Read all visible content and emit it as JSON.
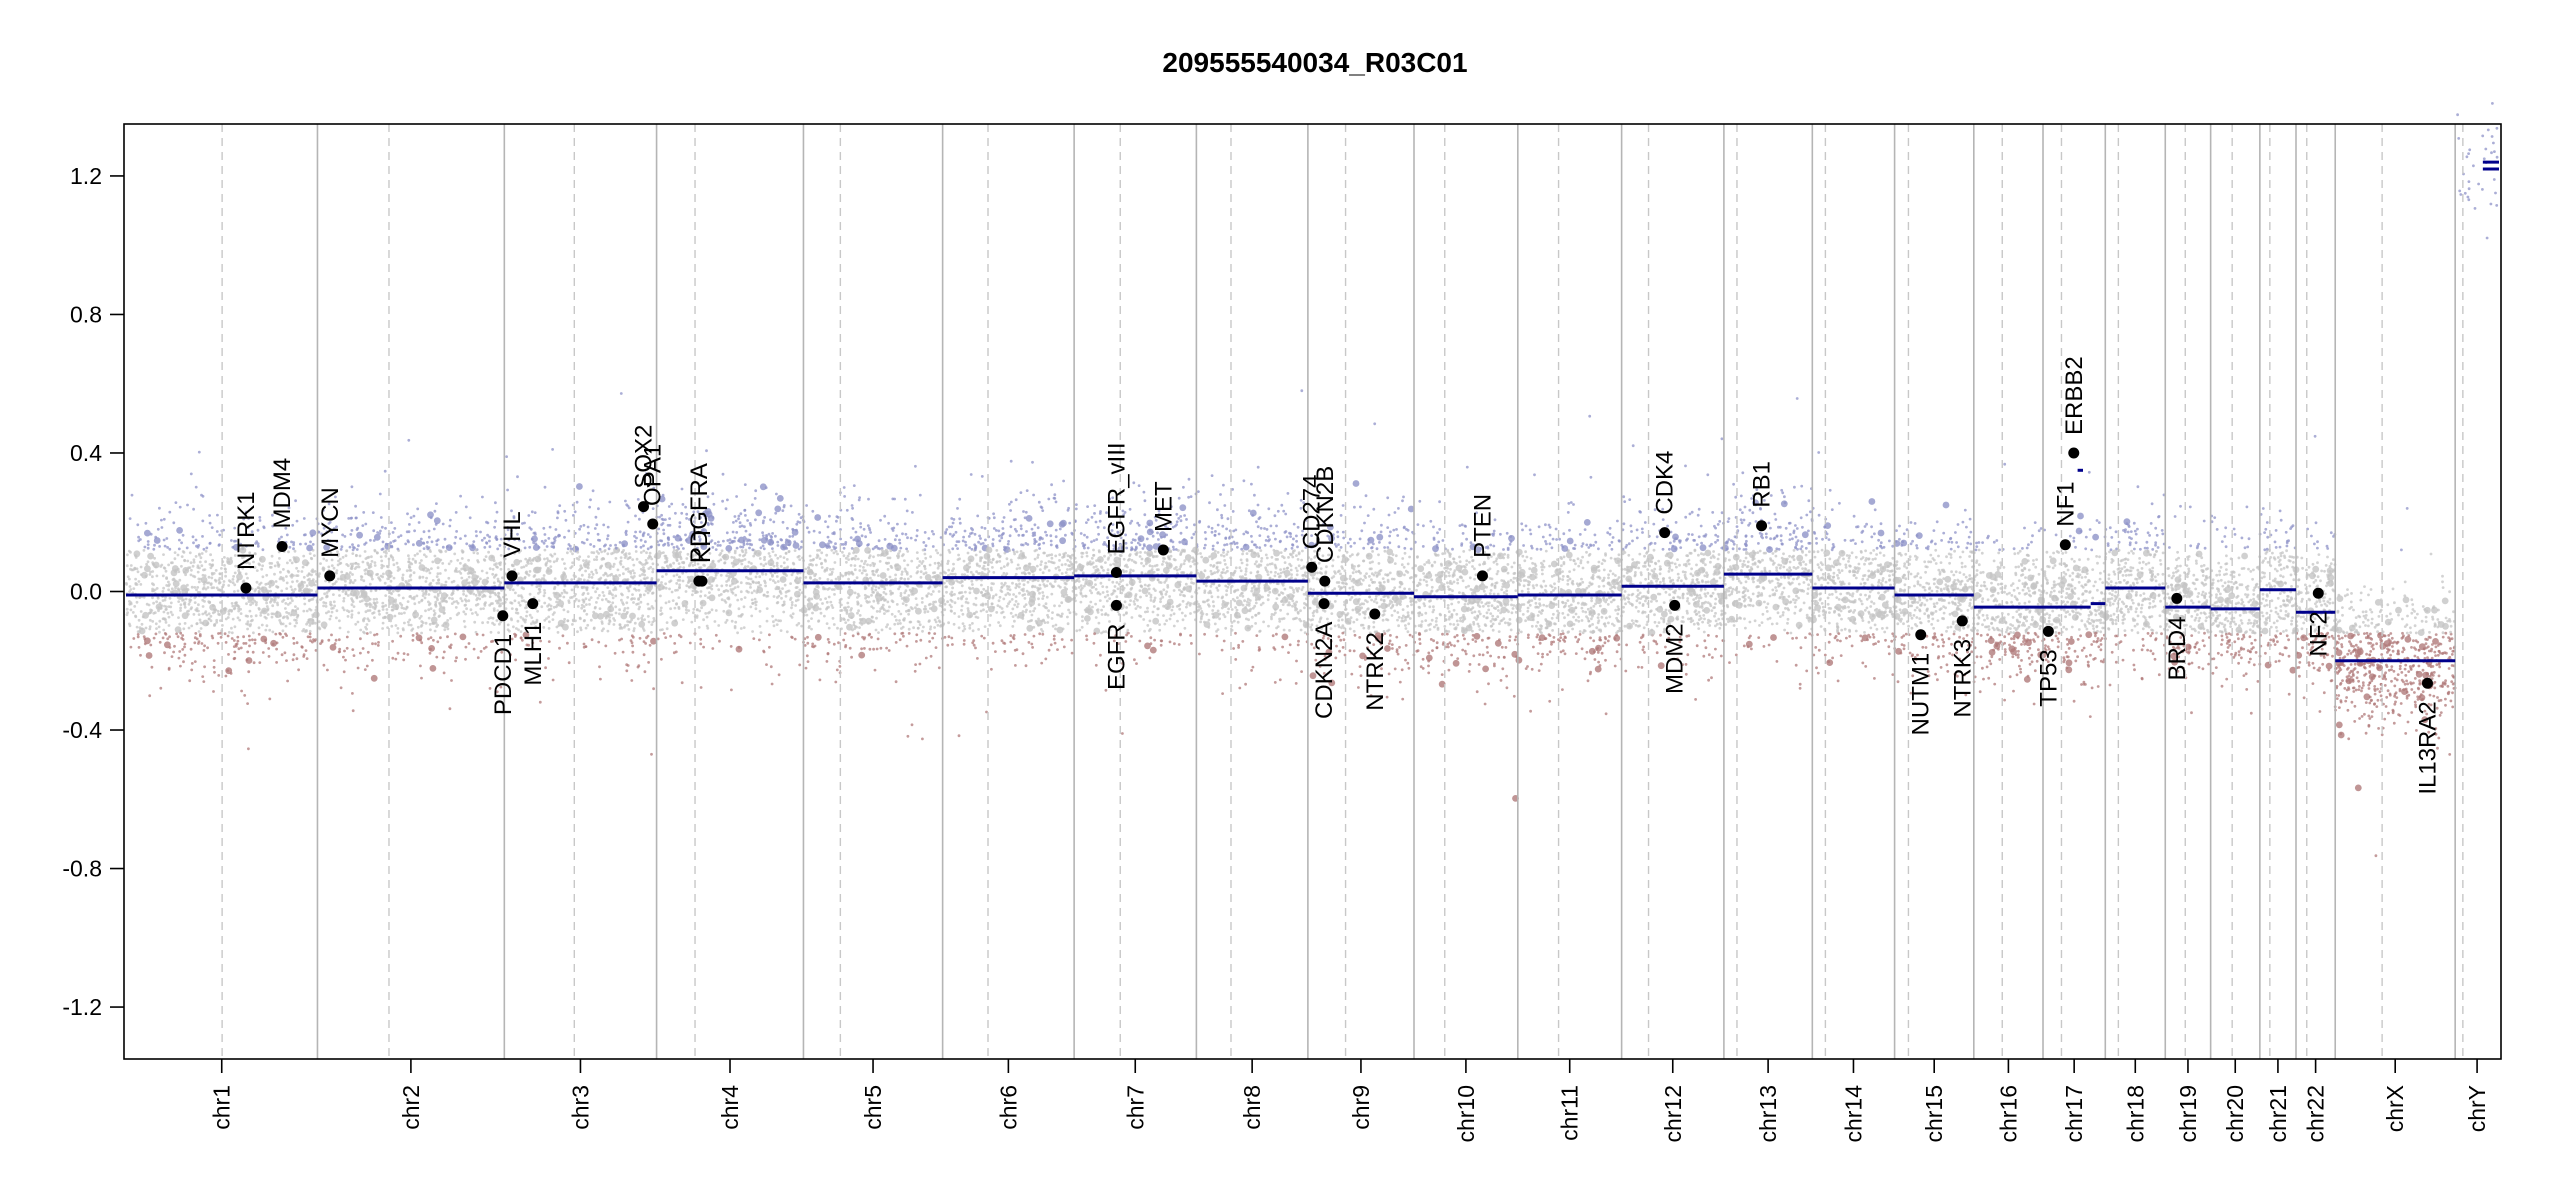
{
  "chart_data": {
    "type": "scatter",
    "title": "209555540034_R03C01",
    "xlabel": "",
    "ylabel": "",
    "ylim": [
      -1.35,
      1.35
    ],
    "yticks": [
      "-1.2",
      "-0.8",
      "-0.4",
      "0.0",
      "0.4",
      "0.8",
      "1.2"
    ],
    "grid": false,
    "colors": {
      "gain": "#8f93c8",
      "loss": "#b07a7a",
      "neutral": "#c4c4c4",
      "segment": "#00008b",
      "gene": "#000000"
    },
    "chromosomes": [
      {
        "name": "chr1",
        "start": 0,
        "end": 249,
        "centromere": 125,
        "segments": [
          {
            "s": 0,
            "e": 249,
            "v": -0.01
          }
        ]
      },
      {
        "name": "chr2",
        "start": 249,
        "end": 492,
        "centromere": 342,
        "segments": [
          {
            "s": 249,
            "e": 492,
            "v": 0.01
          }
        ]
      },
      {
        "name": "chr3",
        "start": 492,
        "end": 690,
        "centromere": 583,
        "segments": [
          {
            "s": 492,
            "e": 690,
            "v": 0.025
          }
        ]
      },
      {
        "name": "chr4",
        "start": 690,
        "end": 881,
        "centromere": 740,
        "segments": [
          {
            "s": 690,
            "e": 881,
            "v": 0.06
          }
        ]
      },
      {
        "name": "chr5",
        "start": 881,
        "end": 1062,
        "centromere": 929,
        "segments": [
          {
            "s": 881,
            "e": 1062,
            "v": 0.025
          }
        ]
      },
      {
        "name": "chr6",
        "start": 1062,
        "end": 1233,
        "centromere": 1121,
        "segments": [
          {
            "s": 1062,
            "e": 1233,
            "v": 0.04
          }
        ]
      },
      {
        "name": "chr7",
        "start": 1233,
        "end": 1392,
        "centromere": 1293,
        "segments": [
          {
            "s": 1233,
            "e": 1392,
            "v": 0.045
          }
        ]
      },
      {
        "name": "chr8",
        "start": 1392,
        "end": 1537,
        "centromere": 1437,
        "segments": [
          {
            "s": 1392,
            "e": 1537,
            "v": 0.03
          }
        ]
      },
      {
        "name": "chr9",
        "start": 1537,
        "end": 1675,
        "centromere": 1586,
        "segments": [
          {
            "s": 1537,
            "e": 1675,
            "v": -0.005
          }
        ]
      },
      {
        "name": "chr10",
        "start": 1675,
        "end": 1810,
        "centromere": 1715,
        "segments": [
          {
            "s": 1675,
            "e": 1810,
            "v": -0.015
          }
        ]
      },
      {
        "name": "chr11",
        "start": 1810,
        "end": 1945,
        "centromere": 1863,
        "segments": [
          {
            "s": 1810,
            "e": 1945,
            "v": -0.01
          }
        ]
      },
      {
        "name": "chr12",
        "start": 1945,
        "end": 2078,
        "centromere": 1980,
        "segments": [
          {
            "s": 1945,
            "e": 2078,
            "v": 0.015
          }
        ]
      },
      {
        "name": "chr13",
        "start": 2078,
        "end": 2193,
        "centromere": 2095,
        "segments": [
          {
            "s": 2078,
            "e": 2193,
            "v": 0.05
          }
        ]
      },
      {
        "name": "chr14",
        "start": 2193,
        "end": 2300,
        "centromere": 2210,
        "segments": [
          {
            "s": 2193,
            "e": 2300,
            "v": 0.01
          }
        ]
      },
      {
        "name": "chr15",
        "start": 2300,
        "end": 2403,
        "centromere": 2318,
        "segments": [
          {
            "s": 2300,
            "e": 2403,
            "v": -0.01
          }
        ]
      },
      {
        "name": "chr16",
        "start": 2403,
        "end": 2493,
        "centromere": 2440,
        "segments": [
          {
            "s": 2403,
            "e": 2493,
            "v": -0.045
          }
        ]
      },
      {
        "name": "chr17",
        "start": 2493,
        "end": 2574,
        "centromere": 2517,
        "segments": [
          {
            "s": 2493,
            "e": 2555,
            "v": -0.045
          },
          {
            "s": 2555,
            "e": 2574,
            "v": -0.035
          },
          {
            "s": 2538,
            "e": 2545,
            "v": 0.35
          }
        ]
      },
      {
        "name": "chr18",
        "start": 2574,
        "end": 2652,
        "centromere": 2591,
        "segments": [
          {
            "s": 2574,
            "e": 2652,
            "v": 0.01
          }
        ]
      },
      {
        "name": "chr19",
        "start": 2652,
        "end": 2711,
        "centromere": 2678,
        "segments": [
          {
            "s": 2652,
            "e": 2711,
            "v": -0.045
          }
        ]
      },
      {
        "name": "chr20",
        "start": 2711,
        "end": 2775,
        "centromere": 2739,
        "segments": [
          {
            "s": 2711,
            "e": 2775,
            "v": -0.05
          }
        ]
      },
      {
        "name": "chr21",
        "start": 2775,
        "end": 2822,
        "centromere": 2788,
        "segments": [
          {
            "s": 2775,
            "e": 2822,
            "v": 0.005
          }
        ]
      },
      {
        "name": "chr22",
        "start": 2822,
        "end": 2873,
        "centromere": 2836,
        "segments": [
          {
            "s": 2822,
            "e": 2873,
            "v": -0.06
          }
        ]
      },
      {
        "name": "chrX",
        "start": 2873,
        "end": 3029,
        "centromere": 2934,
        "segments": [
          {
            "s": 2873,
            "e": 3029,
            "v": -0.2
          }
        ]
      },
      {
        "name": "chrY",
        "start": 3029,
        "end": 3086,
        "centromere": 3039,
        "segments": [
          {
            "s": 3065,
            "e": 3086,
            "v": 1.22
          },
          {
            "s": 3065,
            "e": 3086,
            "v": 1.24
          }
        ]
      }
    ],
    "genes": [
      {
        "name": "NTRK1",
        "pos": 156,
        "value": 0.01,
        "side": "above"
      },
      {
        "name": "MDM4",
        "pos": 203,
        "value": 0.13,
        "side": "above"
      },
      {
        "name": "MYCN",
        "pos": 265,
        "value": 0.045,
        "side": "above"
      },
      {
        "name": "PDCD1",
        "pos": 490,
        "value": -0.07,
        "side": "below"
      },
      {
        "name": "VHL",
        "pos": 502,
        "value": 0.045,
        "side": "above"
      },
      {
        "name": "MLH1",
        "pos": 529,
        "value": -0.035,
        "side": "below"
      },
      {
        "name": "SOX2",
        "pos": 673,
        "value": 0.245,
        "side": "above"
      },
      {
        "name": "OPA1",
        "pos": 685,
        "value": 0.195,
        "side": "above"
      },
      {
        "name": "PDGFRA",
        "pos": 745,
        "value": 0.03,
        "side": "above"
      },
      {
        "name": "KIT",
        "pos": 749,
        "value": 0.03,
        "side": "above"
      },
      {
        "name": "EGFR_vIII",
        "pos": 1288,
        "value": 0.055,
        "side": "above"
      },
      {
        "name": "EGFR",
        "pos": 1288,
        "value": -0.04,
        "side": "below"
      },
      {
        "name": "MET",
        "pos": 1349,
        "value": 0.12,
        "side": "above"
      },
      {
        "name": "CD274",
        "pos": 1542,
        "value": 0.07,
        "side": "above"
      },
      {
        "name": "CDKN2B",
        "pos": 1559,
        "value": 0.03,
        "side": "above"
      },
      {
        "name": "CDKN2A",
        "pos": 1558,
        "value": -0.035,
        "side": "below"
      },
      {
        "name": "NTRK2",
        "pos": 1624,
        "value": -0.065,
        "side": "below"
      },
      {
        "name": "PTEN",
        "pos": 1764,
        "value": 0.045,
        "side": "above"
      },
      {
        "name": "CDK4",
        "pos": 2001,
        "value": 0.17,
        "side": "above"
      },
      {
        "name": "MDM2",
        "pos": 2014,
        "value": -0.04,
        "side": "below"
      },
      {
        "name": "RB1",
        "pos": 2127,
        "value": 0.19,
        "side": "above"
      },
      {
        "name": "NUTM1",
        "pos": 2334,
        "value": -0.125,
        "side": "below"
      },
      {
        "name": "NTRK3",
        "pos": 2388,
        "value": -0.085,
        "side": "below"
      },
      {
        "name": "TP53",
        "pos": 2500,
        "value": -0.115,
        "side": "below"
      },
      {
        "name": "NF1",
        "pos": 2522,
        "value": 0.135,
        "side": "above"
      },
      {
        "name": "ERBB2",
        "pos": 2533,
        "value": 0.4,
        "side": "above"
      },
      {
        "name": "BRD4",
        "pos": 2667,
        "value": -0.02,
        "side": "below"
      },
      {
        "name": "NF2",
        "pos": 2851,
        "value": -0.005,
        "side": "below"
      },
      {
        "name": "IL13RA2",
        "pos": 2993,
        "value": -0.265,
        "side": "below"
      }
    ]
  }
}
